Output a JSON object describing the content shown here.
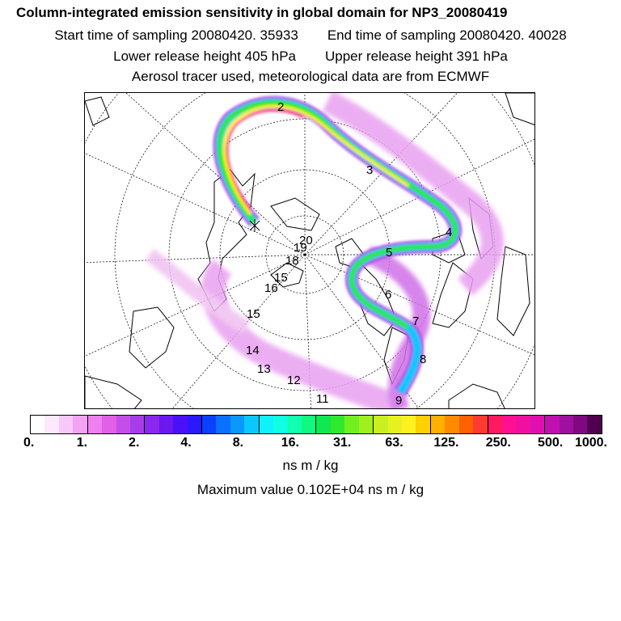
{
  "title": "Column-integrated emission sensitivity in global domain for NP3_20080419",
  "start_time": "Start time of sampling 20080420. 35933",
  "end_time": "End time of sampling 20080420. 40028",
  "lower_release": "Lower release height  405 hPa",
  "upper_release": "Upper release height  391 hPa",
  "aerosol_note": "Aerosol tracer used, meteorological data are from ECMWF",
  "map": {
    "day_labels": [
      "2",
      "3",
      "4",
      "5",
      "6",
      "7",
      "8",
      "9",
      "11",
      "12",
      "13",
      "14",
      "15",
      "16",
      "15",
      "18",
      "19",
      "20"
    ]
  },
  "colorbar": {
    "colors": [
      "#ffffff",
      "#fde8fd",
      "#f9c8f9",
      "#f4a3f4",
      "#ef80ef",
      "#e060e8",
      "#c44ee8",
      "#a83ce8",
      "#8a28f0",
      "#6a18f0",
      "#4a10f8",
      "#2c18ff",
      "#0a40ff",
      "#0a70ff",
      "#0a98ff",
      "#0ac8ff",
      "#10f0ff",
      "#10ffe0",
      "#10ffb0",
      "#10f880",
      "#10e850",
      "#30e830",
      "#70f020",
      "#a0f020",
      "#c8f020",
      "#e8f020",
      "#fff020",
      "#ffd000",
      "#ffb000",
      "#ff8a00",
      "#ff6000",
      "#ff3a30",
      "#ff1a60",
      "#ff1090",
      "#f010a0",
      "#e010b0",
      "#c010b0",
      "#a010a0",
      "#800880",
      "#500050"
    ],
    "tick_labels": [
      "0.",
      "1.",
      "2.",
      "4.",
      "8.",
      "16.",
      "31.",
      "63.",
      "125.",
      "250.",
      "500.",
      "1000."
    ]
  },
  "units": "ns m / kg",
  "max_value": "Maximum value  0.102E+04 ns m / kg"
}
